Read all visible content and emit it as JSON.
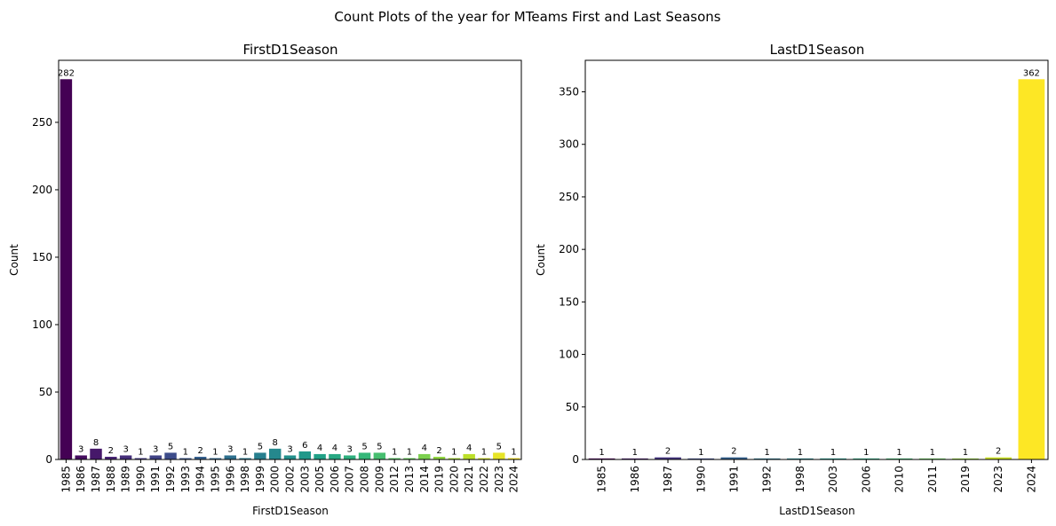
{
  "suptitle": "Count Plots of the year for MTeams First and Last Seasons",
  "chart_data": [
    {
      "type": "bar",
      "title": "FirstD1Season",
      "xlabel": "FirstD1Season",
      "ylabel": "Count",
      "ylim": [
        0,
        296
      ],
      "yticks": [
        0,
        50,
        100,
        150,
        200,
        250
      ],
      "categories": [
        "1985",
        "1986",
        "1987",
        "1988",
        "1989",
        "1990",
        "1991",
        "1992",
        "1993",
        "1994",
        "1995",
        "1996",
        "1998",
        "1999",
        "2000",
        "2002",
        "2003",
        "2005",
        "2006",
        "2007",
        "2008",
        "2009",
        "2012",
        "2013",
        "2014",
        "2019",
        "2020",
        "2021",
        "2022",
        "2023",
        "2024"
      ],
      "values": [
        282,
        3,
        8,
        2,
        3,
        1,
        3,
        5,
        1,
        2,
        1,
        3,
        1,
        5,
        8,
        3,
        6,
        4,
        4,
        3,
        5,
        5,
        1,
        1,
        4,
        2,
        1,
        4,
        1,
        5,
        1
      ],
      "colormap": "viridis",
      "grid": false,
      "data_labels": true
    },
    {
      "type": "bar",
      "title": "LastD1Season",
      "xlabel": "LastD1Season",
      "ylabel": "Count",
      "ylim": [
        0,
        380
      ],
      "yticks": [
        0,
        50,
        100,
        150,
        200,
        250,
        300,
        350
      ],
      "categories": [
        "1985",
        "1986",
        "1987",
        "1990",
        "1991",
        "1992",
        "1998",
        "2003",
        "2006",
        "2010",
        "2011",
        "2019",
        "2023",
        "2024"
      ],
      "values": [
        1,
        1,
        2,
        1,
        2,
        1,
        1,
        1,
        1,
        1,
        1,
        1,
        2,
        362
      ],
      "colormap": "viridis",
      "grid": false,
      "data_labels": true
    }
  ]
}
